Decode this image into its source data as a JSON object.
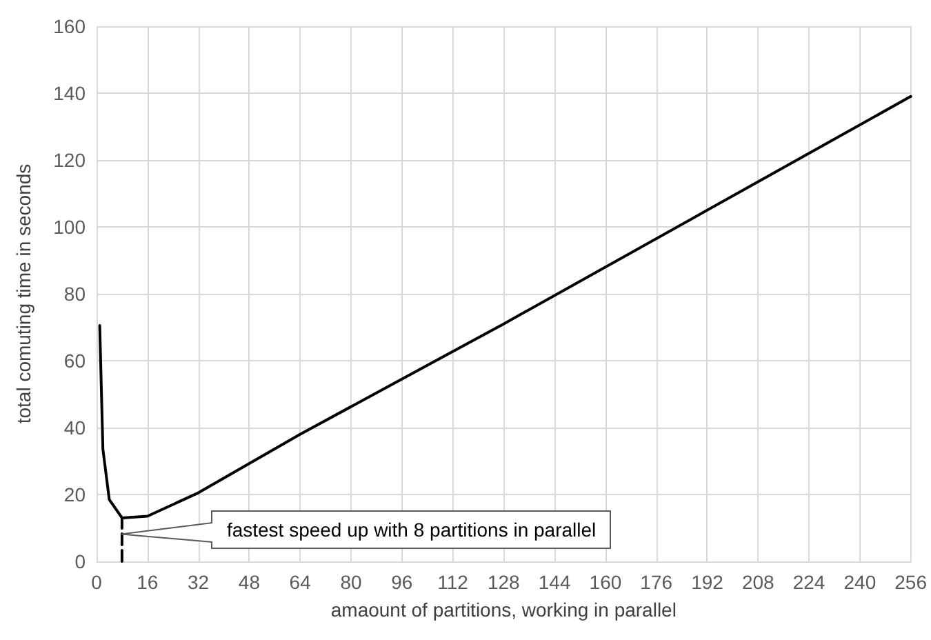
{
  "chart_data": {
    "type": "line",
    "xlabel": "amaount of partitions, working in parallel",
    "ylabel": "total comuting time in seconds",
    "series": [
      {
        "color": "#000000",
        "x": [
          1,
          2,
          4,
          8,
          16,
          32,
          64,
          128,
          256
        ],
        "values": [
          70.5,
          33.5,
          18.5,
          13,
          13.5,
          20.5,
          38,
          71,
          139
        ],
        "marker": "none",
        "line_style": "solid"
      },
      {
        "color": "#000000",
        "x": [
          8,
          8
        ],
        "values": [
          0,
          13
        ],
        "marker": "none",
        "line_style": "dashed"
      }
    ],
    "xlim": [
      0,
      256
    ],
    "xticks": [
      0,
      16,
      32,
      48,
      64,
      80,
      96,
      112,
      128,
      144,
      160,
      176,
      192,
      208,
      224,
      240,
      256
    ],
    "ylim": [
      0,
      160
    ],
    "yticks": [
      0,
      20,
      40,
      60,
      80,
      100,
      120,
      140,
      160
    ],
    "grid": true,
    "annotations": [
      {
        "text": "fastest speed up with 8 partitions in parallel",
        "x": 8,
        "y": 8
      }
    ]
  }
}
